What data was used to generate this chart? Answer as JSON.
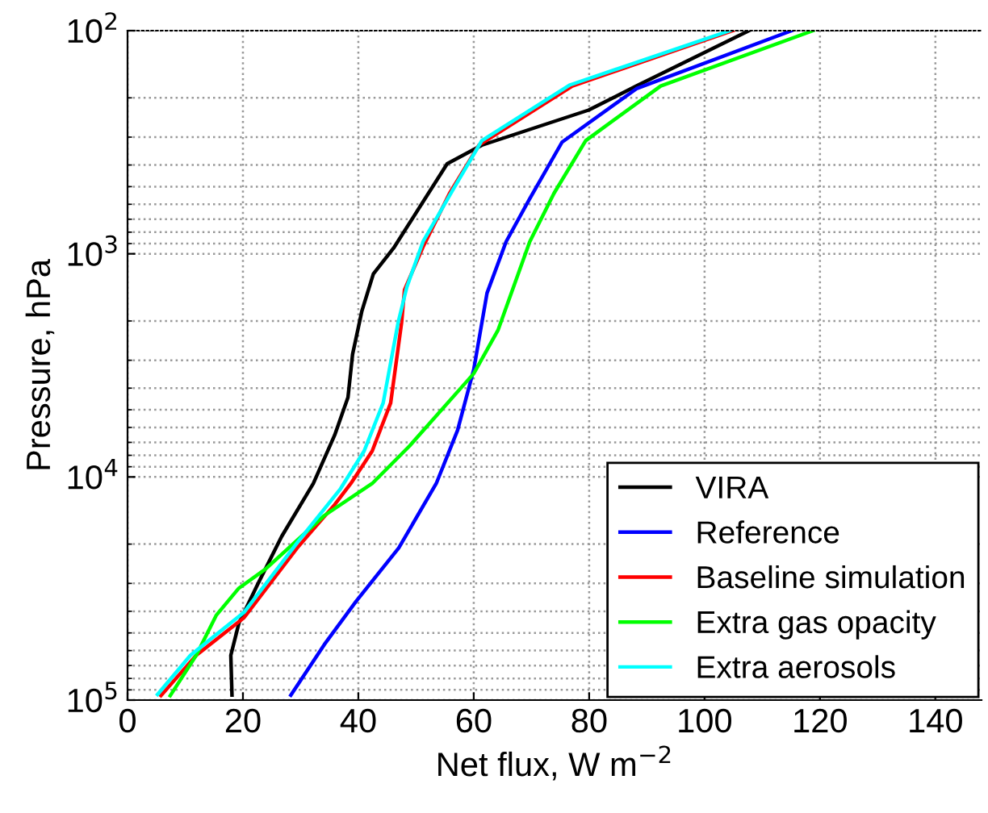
{
  "chart_data": {
    "type": "line",
    "xlabel": "Net flux, W m$^{−2}$",
    "ylabel": "Pressure, hPa",
    "xlim": [
      0,
      148
    ],
    "xticks": [
      0,
      20,
      40,
      60,
      80,
      100,
      120,
      140
    ],
    "ylim": [
      100000,
      100
    ],
    "yticks": [
      {
        "value": 100,
        "label": "10$^{2}$"
      },
      {
        "value": 1000,
        "label": "10$^{3}$"
      },
      {
        "value": 10000,
        "label": "10$^{4}$"
      },
      {
        "value": 100000,
        "label": "10$^{5}$"
      }
    ],
    "log": "y",
    "grid": true,
    "legend": "bottom right",
    "line_style": "solid",
    "marker": "none",
    "series": [
      {
        "name": "VIRA",
        "color": "#000000",
        "x": [
          107.7,
          88.2,
          79.9,
          61.4,
          55.4,
          46.1,
          42.6,
          40.6,
          39.0,
          38.2,
          35.9,
          32.2,
          26.7,
          22.5,
          19.3,
          17.9,
          18.1
        ],
        "values": [
          100,
          177,
          227,
          326,
          395,
          944,
          1230,
          1810,
          2820,
          4400,
          6490,
          10700,
          18500,
          30500,
          45200,
          63000,
          95000
        ]
      },
      {
        "name": "Reference",
        "color": "#0000ff",
        "x": [
          115.1,
          88.2,
          75.3,
          69.7,
          65.6,
          62.3,
          60.0,
          57.2,
          53.5,
          47.0,
          39.6,
          34.1,
          28.3
        ],
        "values": [
          100,
          182,
          316,
          566,
          883,
          1500,
          3300,
          6170,
          10700,
          20800,
          36100,
          56400,
          95000
        ]
      },
      {
        "name": "Baseline simulation",
        "color": "#ff0000",
        "x": [
          104.9,
          77.1,
          60.9,
          55.8,
          51.2,
          48.0,
          47.5,
          45.6,
          42.4,
          38.7,
          35.9,
          29.4,
          20.2,
          11.9,
          5.8
        ],
        "values": [
          100,
          177,
          326,
          536,
          933,
          1450,
          2030,
          4660,
          7660,
          10700,
          13300,
          20800,
          42700,
          63000,
          95500
        ]
      },
      {
        "name": "Extra gas opacity",
        "color": "#00ff00",
        "x": [
          118.8,
          92.4,
          79.4,
          73.9,
          69.7,
          64.2,
          60.0,
          48.9,
          42.4,
          34.1,
          23.9,
          19.3,
          15.4,
          11.9,
          7.4
        ],
        "values": [
          100,
          177,
          311,
          536,
          883,
          2200,
          3440,
          7250,
          10700,
          14900,
          25900,
          31500,
          41600,
          63000,
          95500
        ]
      },
      {
        "name": "Extra aerosols",
        "color": "#00ffff",
        "x": [
          104.4,
          76.7,
          61.4,
          56.3,
          51.2,
          48.4,
          46.9,
          44.3,
          41.0,
          36.9,
          29.4,
          20.2,
          10.9,
          5.2
        ],
        "values": [
          100,
          175,
          311,
          521,
          883,
          1410,
          2030,
          4660,
          7660,
          11300,
          19700,
          40400,
          63000,
          94400
        ]
      }
    ]
  }
}
